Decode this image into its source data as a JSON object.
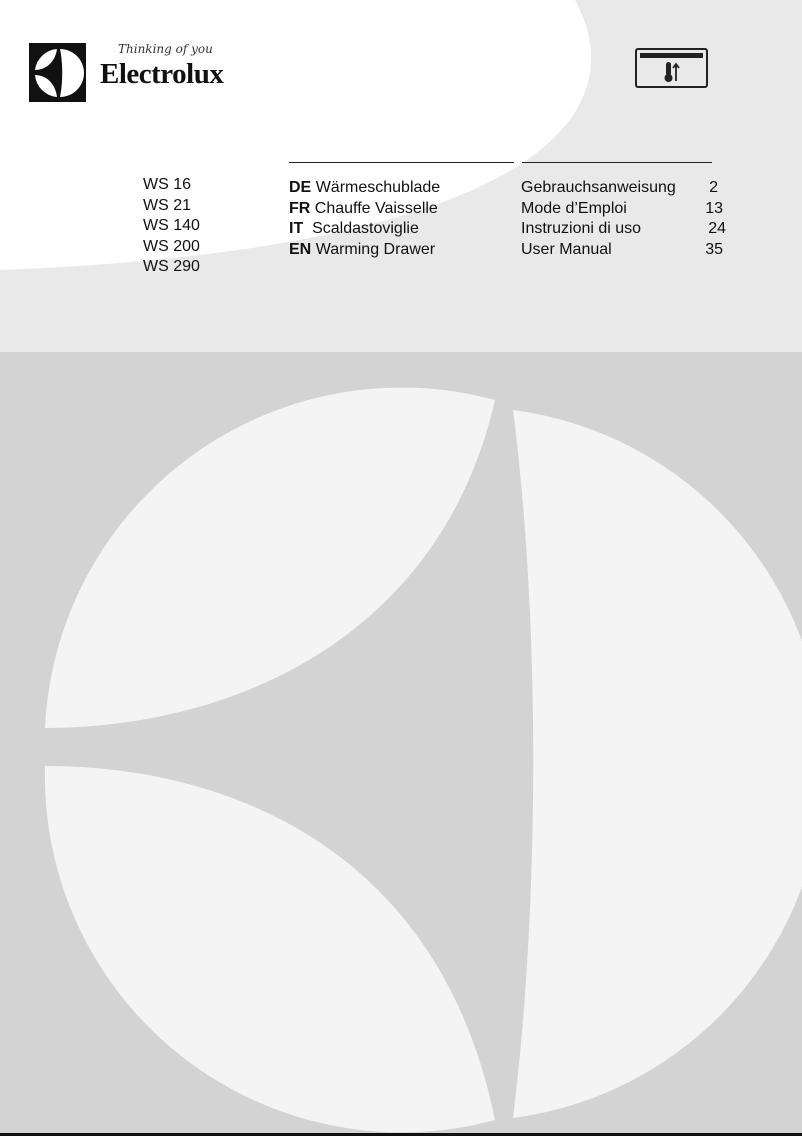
{
  "brand": {
    "name": "Electrolux",
    "tagline": "Thinking of you",
    "logo_icon": "electrolux-logo"
  },
  "product_icon": "warming-drawer-thermometer-icon",
  "models": [
    "WS 16",
    "WS 21",
    "WS 140",
    "WS 200",
    "WS 290"
  ],
  "languages": [
    {
      "code": "DE",
      "product": "Wärmeschublade",
      "title": "Gebrauchsanweisung",
      "page": "2"
    },
    {
      "code": "FR",
      "product": "Chauffe Vaisselle",
      "title": "Mode d’Emploi",
      "page": "13"
    },
    {
      "code": "IT",
      "product": "Scaldastoviglie",
      "title": "Instruzioni di uso",
      "page": "24"
    },
    {
      "code": "EN",
      "product": "Warming Drawer",
      "title": "User Manual",
      "page": "35"
    }
  ],
  "colors": {
    "top_bg": "#e9e9e9",
    "bottom_bg": "#d3d3d3",
    "white": "#ffffff",
    "ink": "#111111"
  }
}
